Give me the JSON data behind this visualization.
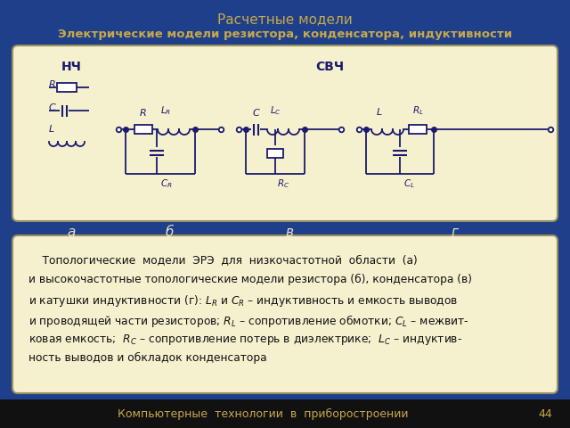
{
  "bg_color": "#1e3f8a",
  "footer_bg": "#1a1a1a",
  "title_text": "Расчетные модели",
  "title_color": "#c8a84b",
  "subtitle_text": "Электрические модели резистора, конденсатора, индуктивности",
  "subtitle_color": "#c8a84b",
  "footer_text": "Компьютерные  технологии  в  приборостроении",
  "footer_num": "44",
  "footer_color": "#c8a84b",
  "circuit_bg": "#f5f0ce",
  "text_box_bg": "#f5f0ce",
  "circuit_color": "#1a1a6e",
  "label_color": "#e8e0c0"
}
